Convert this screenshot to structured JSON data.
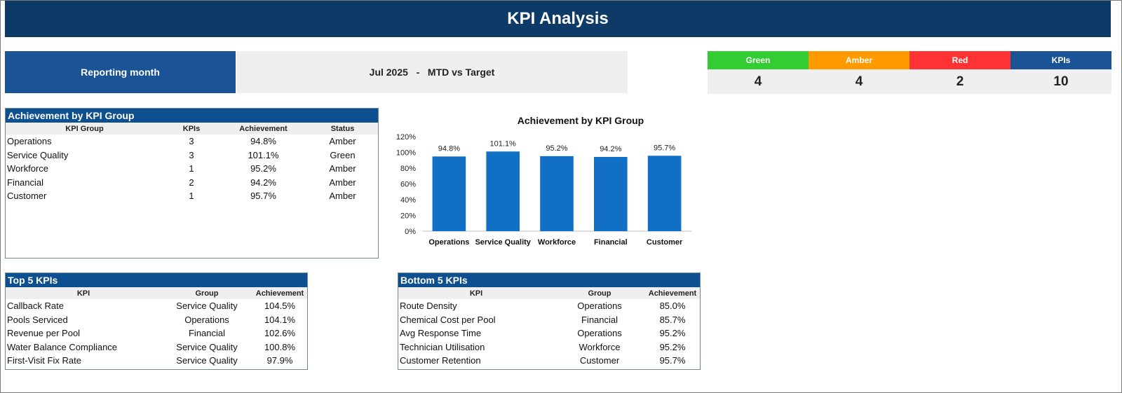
{
  "header": {
    "title": "KPI Analysis"
  },
  "reporting": {
    "label": "Reporting month",
    "value": "Jul 2025   -   MTD vs Target"
  },
  "status_counts": [
    {
      "label": "Green",
      "count": "4",
      "color": "#33cc33"
    },
    {
      "label": "Amber",
      "count": "4",
      "color": "#ff9900"
    },
    {
      "label": "Red",
      "count": "2",
      "color": "#ff3333"
    },
    {
      "label": "KPIs",
      "count": "10",
      "color": "#1a5396"
    }
  ],
  "group_table": {
    "title": "Achievement by KPI Group",
    "columns": [
      "KPI Group",
      "KPIs",
      "Achievement",
      "Status"
    ],
    "rows": [
      [
        "Operations",
        "3",
        "94.8%",
        "Amber"
      ],
      [
        "Service Quality",
        "3",
        "101.1%",
        "Green"
      ],
      [
        "Workforce",
        "1",
        "95.2%",
        "Amber"
      ],
      [
        "Financial",
        "2",
        "94.2%",
        "Amber"
      ],
      [
        "Customer",
        "1",
        "95.7%",
        "Amber"
      ]
    ]
  },
  "chart_data": {
    "type": "bar",
    "title": "Achievement by KPI Group",
    "categories": [
      "Operations",
      "Service Quality",
      "Workforce",
      "Financial",
      "Customer"
    ],
    "values": [
      94.8,
      101.1,
      95.2,
      94.2,
      95.7
    ],
    "data_labels": [
      "94.8%",
      "101.1%",
      "95.2%",
      "94.2%",
      "95.7%"
    ],
    "ylim": [
      0,
      120
    ],
    "yticks": [
      "0%",
      "20%",
      "40%",
      "60%",
      "80%",
      "100%",
      "120%"
    ],
    "bar_color": "#1170c6",
    "grid": false,
    "xlabel": "",
    "ylabel": ""
  },
  "top5": {
    "title": "Top 5 KPIs",
    "columns": [
      "KPI",
      "Group",
      "Achievement"
    ],
    "rows": [
      [
        "Callback Rate",
        "Service Quality",
        "104.5%"
      ],
      [
        "Pools Serviced",
        "Operations",
        "104.1%"
      ],
      [
        "Revenue per Pool",
        "Financial",
        "102.6%"
      ],
      [
        "Water Balance Compliance",
        "Service Quality",
        "100.8%"
      ],
      [
        "First-Visit Fix Rate",
        "Service Quality",
        "97.9%"
      ]
    ]
  },
  "bottom5": {
    "title": "Bottom 5 KPIs",
    "columns": [
      "KPI",
      "Group",
      "Achievement"
    ],
    "rows": [
      [
        "Route Density",
        "Operations",
        "85.0%"
      ],
      [
        "Chemical Cost per Pool",
        "Financial",
        "85.7%"
      ],
      [
        "Avg Response Time",
        "Operations",
        "95.2%"
      ],
      [
        "Technician Utilisation",
        "Workforce",
        "95.2%"
      ],
      [
        "Customer Retention",
        "Customer",
        "95.7%"
      ]
    ]
  }
}
